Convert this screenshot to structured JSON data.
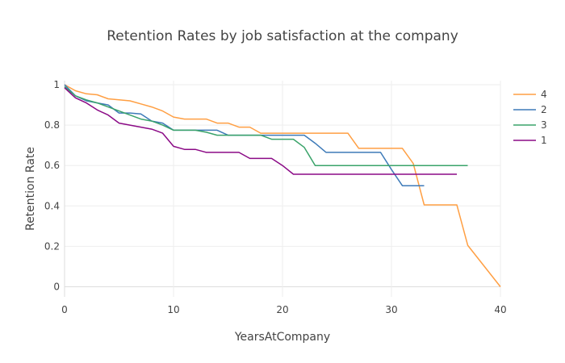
{
  "chart_data": {
    "type": "line",
    "title": "Retention Rates by job satisfaction at the company",
    "xlabel": "YearsAtCompany",
    "ylabel": "Retention Rate",
    "xlim": [
      0,
      40
    ],
    "ylim": [
      -0.05,
      1.02
    ],
    "xticks": [
      0,
      10,
      20,
      30,
      40
    ],
    "yticks": [
      0,
      0.2,
      0.4,
      0.6,
      0.8,
      1
    ],
    "grid": true,
    "legend_position": "top-right",
    "series": [
      {
        "name": "4",
        "color": "#ff9f43",
        "x": [
          0,
          1,
          2,
          3,
          4,
          5,
          6,
          7,
          8,
          9,
          10,
          11,
          12,
          13,
          14,
          15,
          16,
          17,
          18,
          19,
          20,
          21,
          22,
          23,
          24,
          25,
          26,
          27,
          28,
          29,
          30,
          31,
          32,
          33,
          34,
          35,
          36,
          37,
          40
        ],
        "y": [
          1,
          0.97,
          0.955,
          0.95,
          0.93,
          0.925,
          0.92,
          0.905,
          0.89,
          0.87,
          0.84,
          0.83,
          0.83,
          0.83,
          0.81,
          0.81,
          0.79,
          0.79,
          0.76,
          0.76,
          0.76,
          0.76,
          0.76,
          0.76,
          0.76,
          0.76,
          0.76,
          0.685,
          0.685,
          0.685,
          0.685,
          0.685,
          0.61,
          0.405,
          0.405,
          0.405,
          0.405,
          0.205,
          0
        ]
      },
      {
        "name": "2",
        "color": "#3d7ab8",
        "x": [
          0,
          1,
          2,
          3,
          4,
          5,
          6,
          7,
          8,
          9,
          10,
          11,
          12,
          13,
          14,
          15,
          16,
          17,
          18,
          19,
          20,
          21,
          22,
          23,
          24,
          25,
          26,
          27,
          28,
          29,
          30,
          31,
          32,
          33
        ],
        "y": [
          1,
          0.945,
          0.92,
          0.91,
          0.9,
          0.86,
          0.86,
          0.855,
          0.82,
          0.81,
          0.775,
          0.775,
          0.775,
          0.775,
          0.775,
          0.75,
          0.75,
          0.75,
          0.75,
          0.75,
          0.75,
          0.75,
          0.75,
          0.71,
          0.665,
          0.665,
          0.665,
          0.665,
          0.665,
          0.665,
          0.58,
          0.5,
          0.5,
          0.5
        ]
      },
      {
        "name": "3",
        "color": "#3aa36a",
        "x": [
          0,
          1,
          2,
          3,
          4,
          5,
          6,
          7,
          8,
          9,
          10,
          11,
          12,
          13,
          14,
          15,
          16,
          17,
          18,
          19,
          20,
          21,
          22,
          23,
          24,
          25,
          26,
          27,
          28,
          29,
          30,
          31,
          32,
          33,
          34,
          35,
          36,
          37
        ],
        "y": [
          0.99,
          0.945,
          0.925,
          0.91,
          0.89,
          0.87,
          0.85,
          0.83,
          0.82,
          0.8,
          0.775,
          0.775,
          0.775,
          0.765,
          0.75,
          0.75,
          0.75,
          0.75,
          0.75,
          0.73,
          0.73,
          0.73,
          0.69,
          0.6,
          0.6,
          0.6,
          0.6,
          0.6,
          0.6,
          0.6,
          0.6,
          0.6,
          0.6,
          0.6,
          0.6,
          0.6,
          0.6,
          0.6
        ]
      },
      {
        "name": "1",
        "color": "#8b0a86",
        "x": [
          0,
          1,
          2,
          3,
          4,
          5,
          6,
          7,
          8,
          9,
          10,
          11,
          12,
          13,
          14,
          15,
          16,
          17,
          18,
          19,
          20,
          21,
          22,
          23,
          24,
          25,
          26,
          27,
          28,
          29,
          30,
          31,
          32,
          33,
          34,
          35,
          36
        ],
        "y": [
          0.985,
          0.935,
          0.91,
          0.875,
          0.85,
          0.81,
          0.8,
          0.79,
          0.78,
          0.76,
          0.695,
          0.68,
          0.68,
          0.665,
          0.665,
          0.665,
          0.665,
          0.635,
          0.635,
          0.635,
          0.6,
          0.557,
          0.557,
          0.557,
          0.557,
          0.557,
          0.557,
          0.557,
          0.557,
          0.557,
          0.557,
          0.557,
          0.557,
          0.557,
          0.557,
          0.557,
          0.557
        ]
      }
    ]
  }
}
